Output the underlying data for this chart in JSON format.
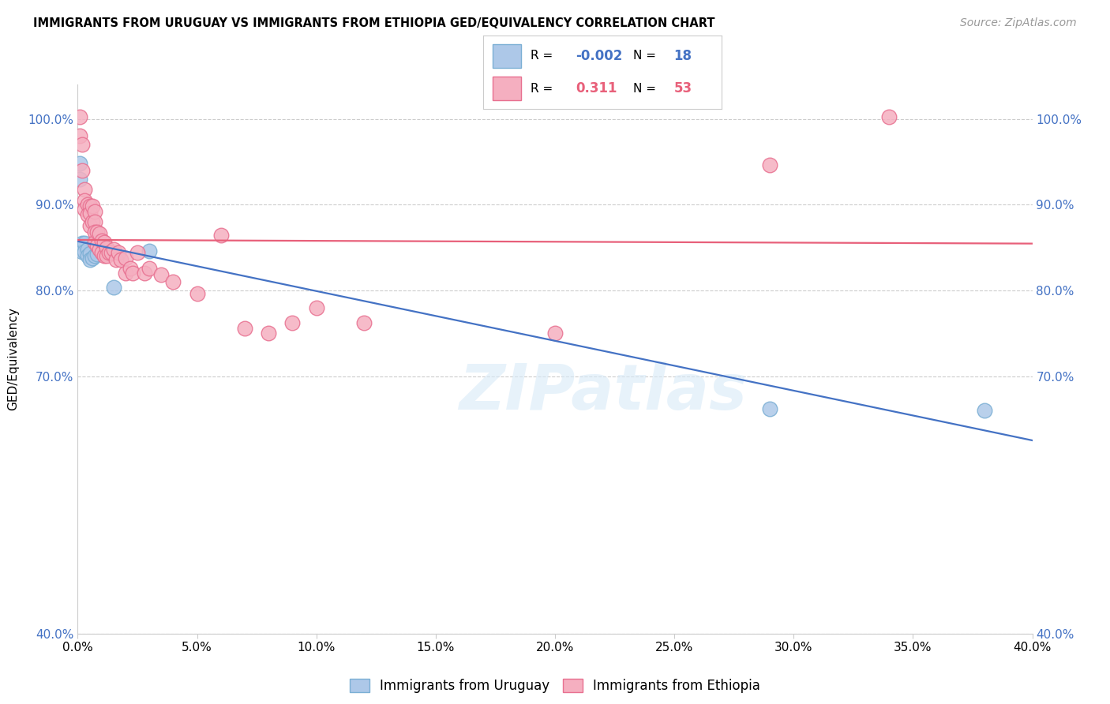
{
  "title": "IMMIGRANTS FROM URUGUAY VS IMMIGRANTS FROM ETHIOPIA GED/EQUIVALENCY CORRELATION CHART",
  "source": "Source: ZipAtlas.com",
  "ylabel": "GED/Equivalency",
  "xmin": 0.0,
  "xmax": 0.4,
  "ymin": 0.4,
  "ymax": 1.04,
  "yticks": [
    0.4,
    0.7,
    0.8,
    0.9,
    1.0
  ],
  "xticks": [
    0.0,
    0.05,
    0.1,
    0.15,
    0.2,
    0.25,
    0.3,
    0.35,
    0.4
  ],
  "uruguay_color": "#adc8e8",
  "ethiopia_color": "#f5afc0",
  "uruguay_edge": "#7bafd4",
  "ethiopia_edge": "#e87090",
  "trend_uruguay_color": "#4472c4",
  "trend_ethiopia_color": "#e8607a",
  "R_uruguay": -0.002,
  "N_uruguay": 18,
  "R_ethiopia": 0.311,
  "N_ethiopia": 53,
  "uruguay_x": [
    0.001,
    0.001,
    0.002,
    0.002,
    0.003,
    0.003,
    0.004,
    0.004,
    0.005,
    0.005,
    0.006,
    0.007,
    0.008,
    0.012,
    0.015,
    0.03,
    0.29,
    0.38
  ],
  "uruguay_y": [
    0.948,
    0.93,
    0.855,
    0.845,
    0.855,
    0.845,
    0.848,
    0.84,
    0.843,
    0.836,
    0.838,
    0.84,
    0.842,
    0.842,
    0.804,
    0.846,
    0.662,
    0.66
  ],
  "ethiopia_x": [
    0.001,
    0.001,
    0.002,
    0.002,
    0.003,
    0.003,
    0.003,
    0.004,
    0.004,
    0.005,
    0.005,
    0.005,
    0.006,
    0.006,
    0.007,
    0.007,
    0.007,
    0.007,
    0.008,
    0.008,
    0.009,
    0.009,
    0.01,
    0.01,
    0.011,
    0.011,
    0.012,
    0.012,
    0.013,
    0.014,
    0.015,
    0.016,
    0.017,
    0.018,
    0.02,
    0.02,
    0.022,
    0.023,
    0.025,
    0.028,
    0.03,
    0.035,
    0.04,
    0.05,
    0.06,
    0.07,
    0.08,
    0.09,
    0.1,
    0.12,
    0.2,
    0.29,
    0.34
  ],
  "ethiopia_y": [
    1.002,
    0.98,
    0.97,
    0.94,
    0.918,
    0.905,
    0.895,
    0.9,
    0.888,
    0.898,
    0.89,
    0.875,
    0.898,
    0.88,
    0.892,
    0.88,
    0.868,
    0.856,
    0.868,
    0.852,
    0.866,
    0.848,
    0.858,
    0.844,
    0.856,
    0.84,
    0.85,
    0.84,
    0.844,
    0.844,
    0.848,
    0.836,
    0.844,
    0.836,
    0.838,
    0.82,
    0.826,
    0.82,
    0.844,
    0.82,
    0.826,
    0.818,
    0.81,
    0.796,
    0.864,
    0.756,
    0.75,
    0.762,
    0.78,
    0.762,
    0.75,
    0.946,
    1.002
  ],
  "watermark": "ZIPatlas",
  "background_color": "#ffffff"
}
